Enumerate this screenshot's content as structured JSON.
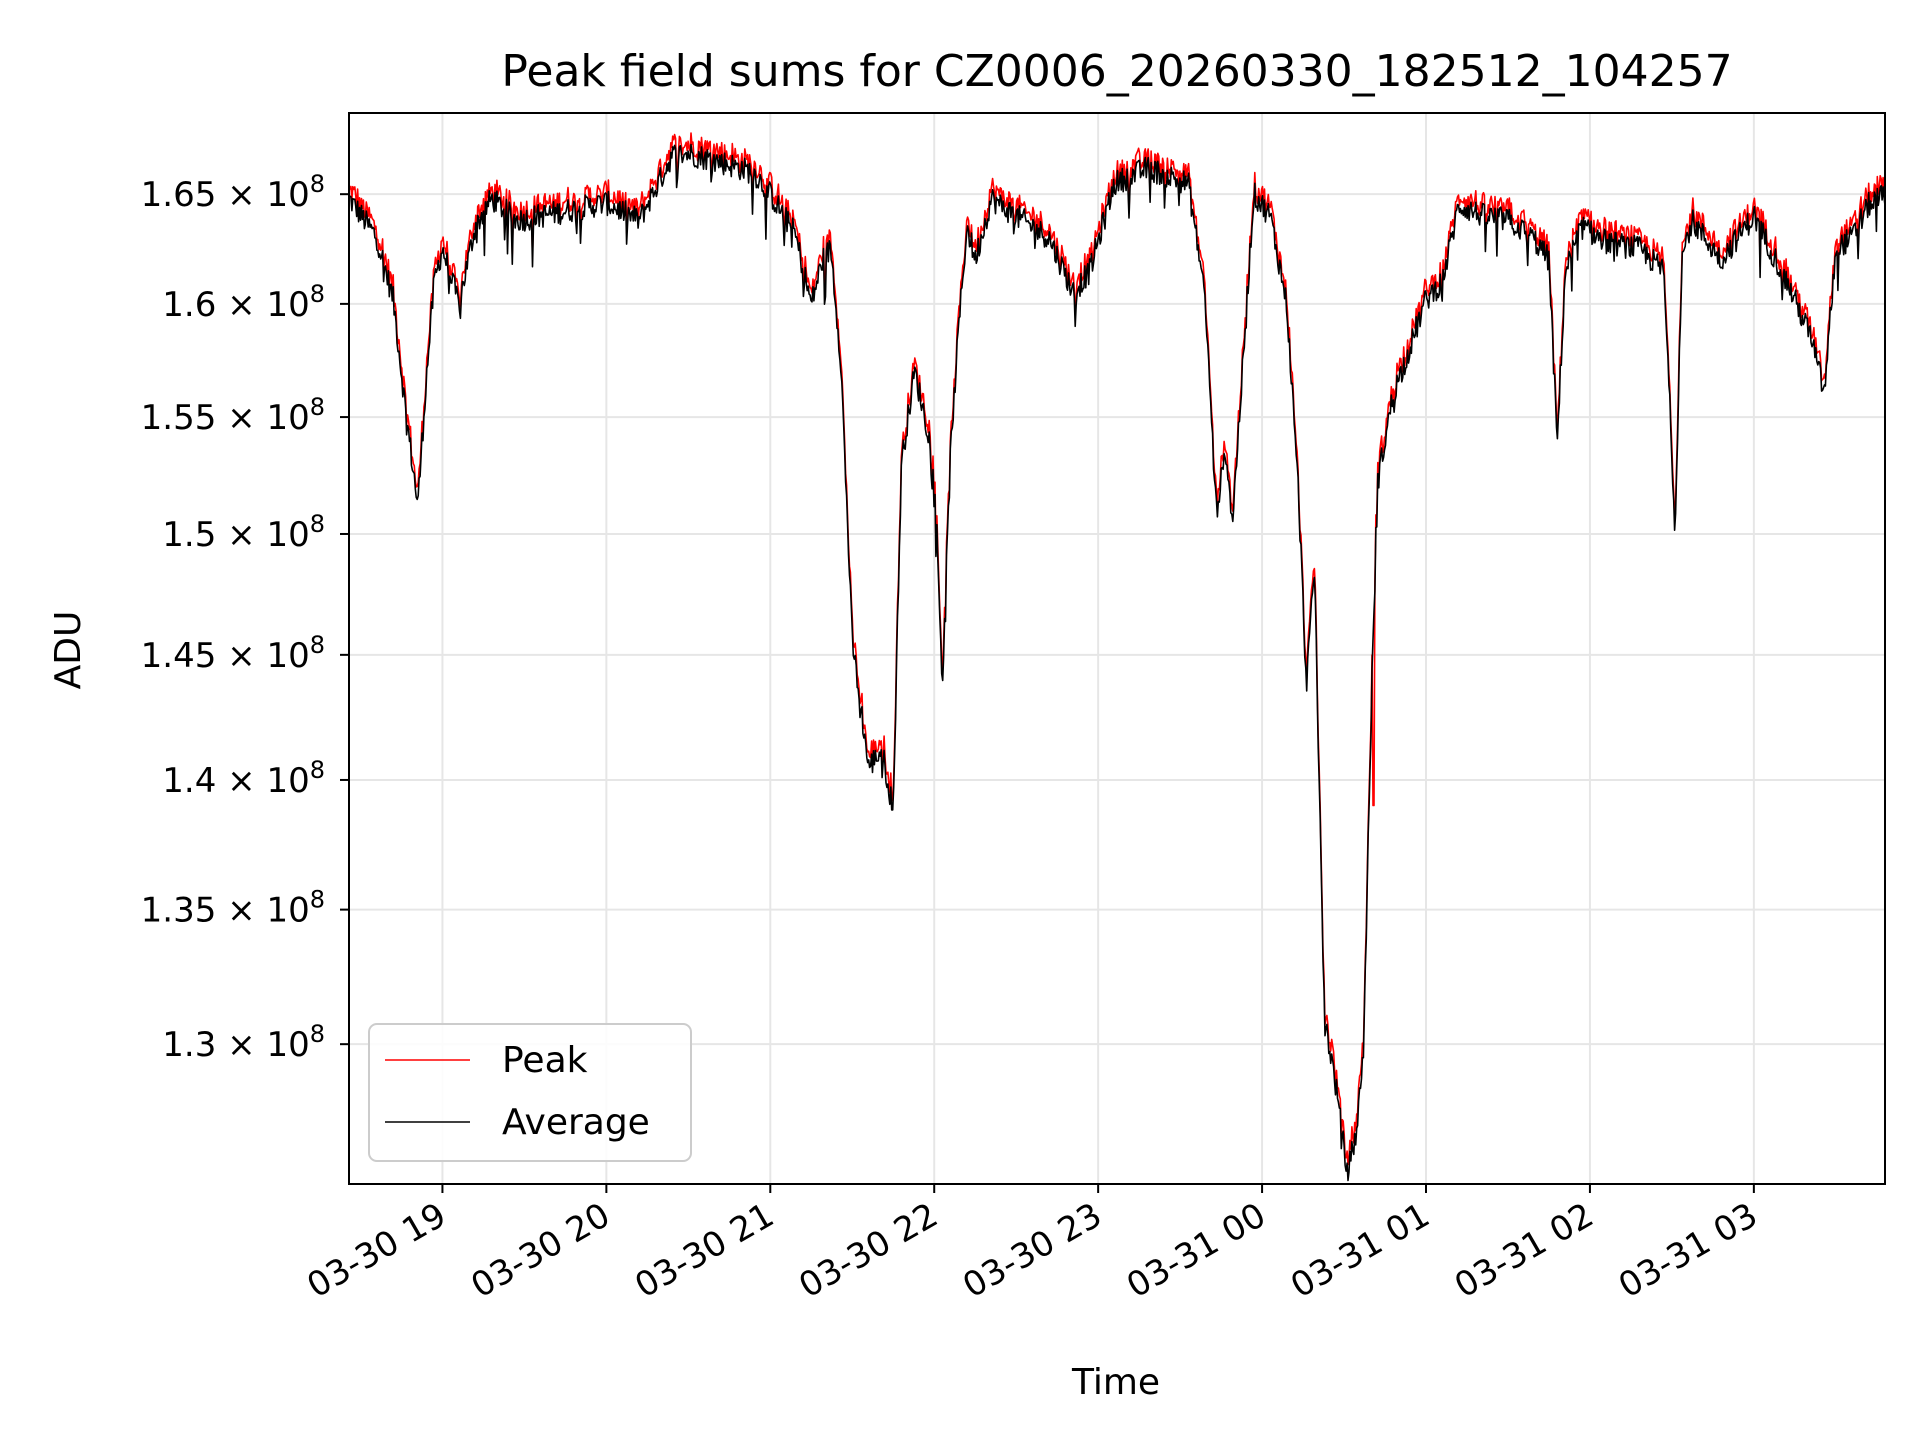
{
  "chart_data": {
    "type": "line",
    "title": "Peak field sums for CZ0006_20260330_182512_104257",
    "xlabel": "Time",
    "ylabel": "ADU",
    "grid": true,
    "legend_position": "lower-left",
    "xlim_hours": [
      18.43,
      27.8
    ],
    "ylim": [
      125000000,
      168800000
    ],
    "x_ticks": [
      {
        "hour": 19,
        "label": "03-30 19"
      },
      {
        "hour": 20,
        "label": "03-30 20"
      },
      {
        "hour": 21,
        "label": "03-30 21"
      },
      {
        "hour": 22,
        "label": "03-30 22"
      },
      {
        "hour": 23,
        "label": "03-30 23"
      },
      {
        "hour": 24,
        "label": "03-31 00"
      },
      {
        "hour": 25,
        "label": "03-31 01"
      },
      {
        "hour": 26,
        "label": "03-31 02"
      },
      {
        "hour": 27,
        "label": "03-31 03"
      }
    ],
    "y_ticks": [
      {
        "value": 130000000,
        "mantissa": "1.3"
      },
      {
        "value": 135000000,
        "mantissa": "1.35"
      },
      {
        "value": 140000000,
        "mantissa": "1.4"
      },
      {
        "value": 145000000,
        "mantissa": "1.45"
      },
      {
        "value": 150000000,
        "mantissa": "1.5"
      },
      {
        "value": 155000000,
        "mantissa": "1.55"
      },
      {
        "value": 160000000,
        "mantissa": "1.6"
      },
      {
        "value": 165000000,
        "mantissa": "1.65"
      }
    ],
    "y_tick_suffix": "× 10",
    "y_tick_exponent": "8",
    "series": [
      {
        "name": "Peak",
        "color": "#ff0000",
        "offset": 400000
      },
      {
        "name": "Average",
        "color": "#000000",
        "offset": 0
      }
    ],
    "average_profile_hours": [
      18.43,
      18.6,
      18.7,
      18.78,
      18.85,
      18.9,
      18.95,
      19.0,
      19.1,
      19.2,
      19.3,
      19.45,
      19.6,
      19.8,
      20.0,
      20.2,
      20.35,
      20.4,
      20.5,
      20.7,
      20.9,
      21.0,
      21.15,
      21.25,
      21.32,
      21.37,
      21.43,
      21.5,
      21.6,
      21.68,
      21.75,
      21.8,
      21.88,
      21.95,
      22.0,
      22.05,
      22.1,
      22.15,
      22.2,
      22.25,
      22.35,
      22.4,
      22.5,
      22.7,
      22.85,
      22.95,
      23.1,
      23.3,
      23.55,
      23.65,
      23.72,
      23.78,
      23.82,
      23.88,
      23.95,
      24.05,
      24.15,
      24.22,
      24.27,
      24.32,
      24.38,
      24.45,
      24.52,
      24.58,
      24.62,
      24.7,
      24.8,
      24.9,
      25.0,
      25.1,
      25.2,
      25.35,
      25.5,
      25.65,
      25.75,
      25.8,
      25.85,
      25.95,
      26.1,
      26.3,
      26.45,
      26.52,
      26.56,
      26.62,
      26.8,
      27.0,
      27.2,
      27.35,
      27.43,
      27.5,
      27.6,
      27.7,
      27.8
    ],
    "average_profile_values": [
      164800000,
      163000000,
      160200000,
      155000000,
      151200000,
      156500000,
      161000000,
      162500000,
      160000000,
      163500000,
      164800000,
      163800000,
      164000000,
      164300000,
      164600000,
      163800000,
      166000000,
      166800000,
      166900000,
      166500000,
      166000000,
      165000000,
      163200000,
      160000000,
      162000000,
      162500000,
      157500000,
      145500000,
      140500000,
      141200000,
      138800000,
      153000000,
      157000000,
      154800000,
      153000000,
      143800000,
      153500000,
      159000000,
      163500000,
      162000000,
      164800000,
      164500000,
      164000000,
      163000000,
      160500000,
      161500000,
      165500000,
      166200000,
      165500000,
      160500000,
      151000000,
      153500000,
      150500000,
      157000000,
      165000000,
      164000000,
      160000000,
      152000000,
      143800000,
      148500000,
      131000000,
      128500000,
      125300000,
      127000000,
      130000000,
      152000000,
      156000000,
      158000000,
      160200000,
      161000000,
      164500000,
      164000000,
      163800000,
      163000000,
      162000000,
      153800000,
      161500000,
      163500000,
      162800000,
      162500000,
      161500000,
      150200000,
      162000000,
      163800000,
      162000000,
      164000000,
      161000000,
      158500000,
      156000000,
      162500000,
      163000000,
      164500000,
      165000000
    ],
    "peak_spike": {
      "hour": 24.68,
      "value": 139000000
    }
  }
}
